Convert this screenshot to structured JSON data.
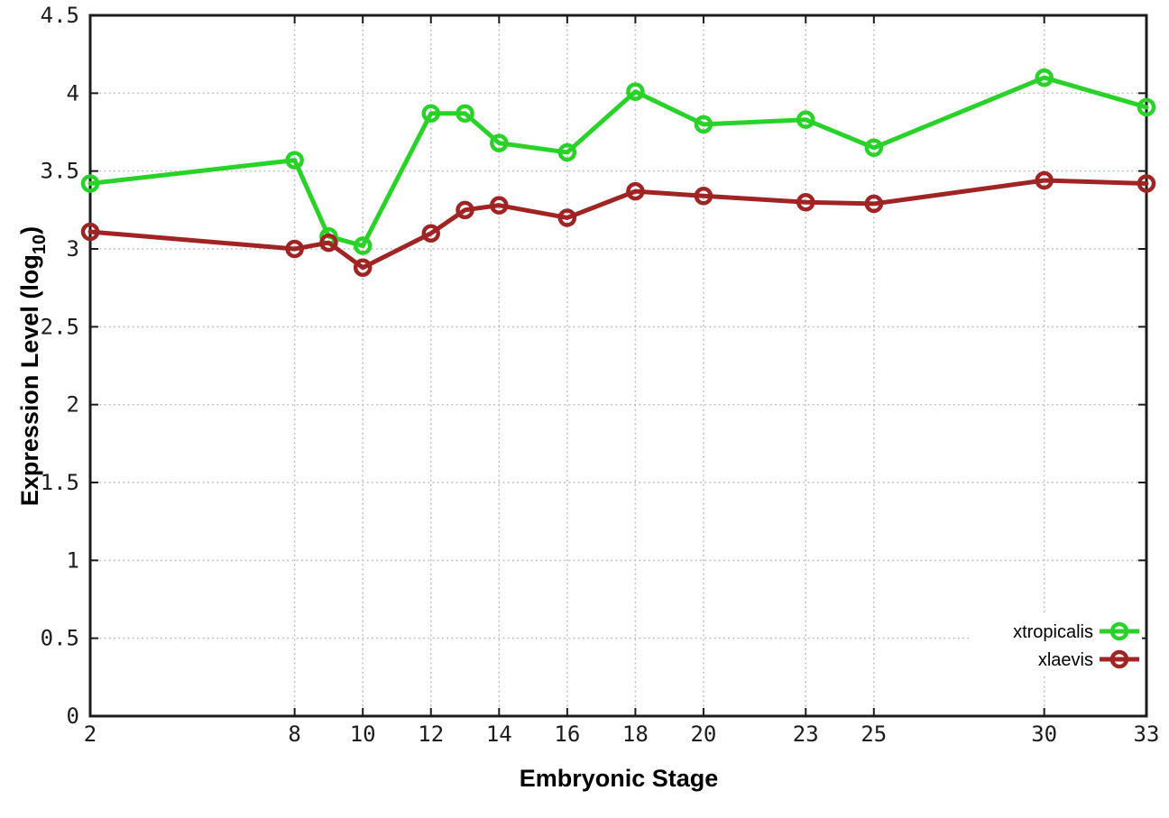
{
  "chart_data": {
    "type": "line",
    "title": "",
    "xlabel": "Embryonic Stage",
    "ylabel": {
      "full": "Expression Level (log10)",
      "main": "Expression Level (log",
      "sub": "10",
      "end": ")"
    },
    "x": [
      2,
      8,
      9,
      10,
      12,
      13,
      14,
      16,
      18,
      20,
      23,
      25,
      30,
      33
    ],
    "series": [
      {
        "name": "xtropicalis",
        "color": "#28d228",
        "values": [
          3.42,
          3.57,
          3.08,
          3.02,
          3.87,
          3.87,
          3.68,
          3.62,
          4.01,
          3.8,
          3.83,
          3.65,
          4.1,
          3.91
        ]
      },
      {
        "name": "xlaevis",
        "color": "#a02424",
        "values": [
          3.11,
          3.0,
          3.04,
          2.88,
          3.1,
          3.25,
          3.28,
          3.2,
          3.37,
          3.34,
          3.3,
          3.29,
          3.44,
          3.42
        ]
      }
    ],
    "xlim": [
      2,
      33
    ],
    "ylim": [
      0,
      4.5
    ],
    "x_ticks": [
      2,
      8,
      10,
      12,
      14,
      16,
      18,
      20,
      23,
      25,
      30,
      33
    ],
    "x_tick_labels": [
      "2",
      "8",
      "10",
      "12",
      "14",
      "16",
      "18",
      "20",
      "23",
      "25",
      "30",
      "33"
    ],
    "y_ticks": [
      0,
      0.5,
      1,
      1.5,
      2,
      2.5,
      3,
      3.5,
      4,
      4.5
    ],
    "y_tick_labels": [
      "0",
      "0.5",
      "1",
      "1.5",
      "2",
      "2.5",
      "3",
      "3.5",
      "4",
      "4.5"
    ],
    "grid": true,
    "legend_position": "bottom-right",
    "colors": {
      "background": "#ffffff",
      "axis": "#1c1c1c",
      "gridline": "#bcbcbc"
    }
  }
}
